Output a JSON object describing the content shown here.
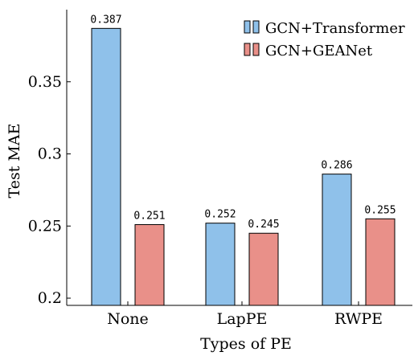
{
  "chart_data": {
    "type": "bar",
    "categories": [
      "None",
      "LapPE",
      "RWPE"
    ],
    "series": [
      {
        "name": "GCN+Transformer",
        "values": [
          0.387,
          0.252,
          0.286
        ],
        "color": "#8fc1ea"
      },
      {
        "name": "GCN+GEANet",
        "values": [
          0.251,
          0.245,
          0.255
        ],
        "color": "#e99089"
      }
    ],
    "data_labels": [
      [
        "0.387",
        "0.252",
        "0.286"
      ],
      [
        "0.251",
        "0.245",
        "0.255"
      ]
    ],
    "xlabel": "Types of PE",
    "ylabel": "Test MAE",
    "ylim": [
      0.195,
      0.4
    ],
    "yticks": [
      0.2,
      0.25,
      0.3,
      0.35
    ],
    "ytick_labels": [
      "0.2",
      "0.25",
      "0.3",
      "0.35"
    ],
    "legend_position": "top-right",
    "grid": false
  }
}
